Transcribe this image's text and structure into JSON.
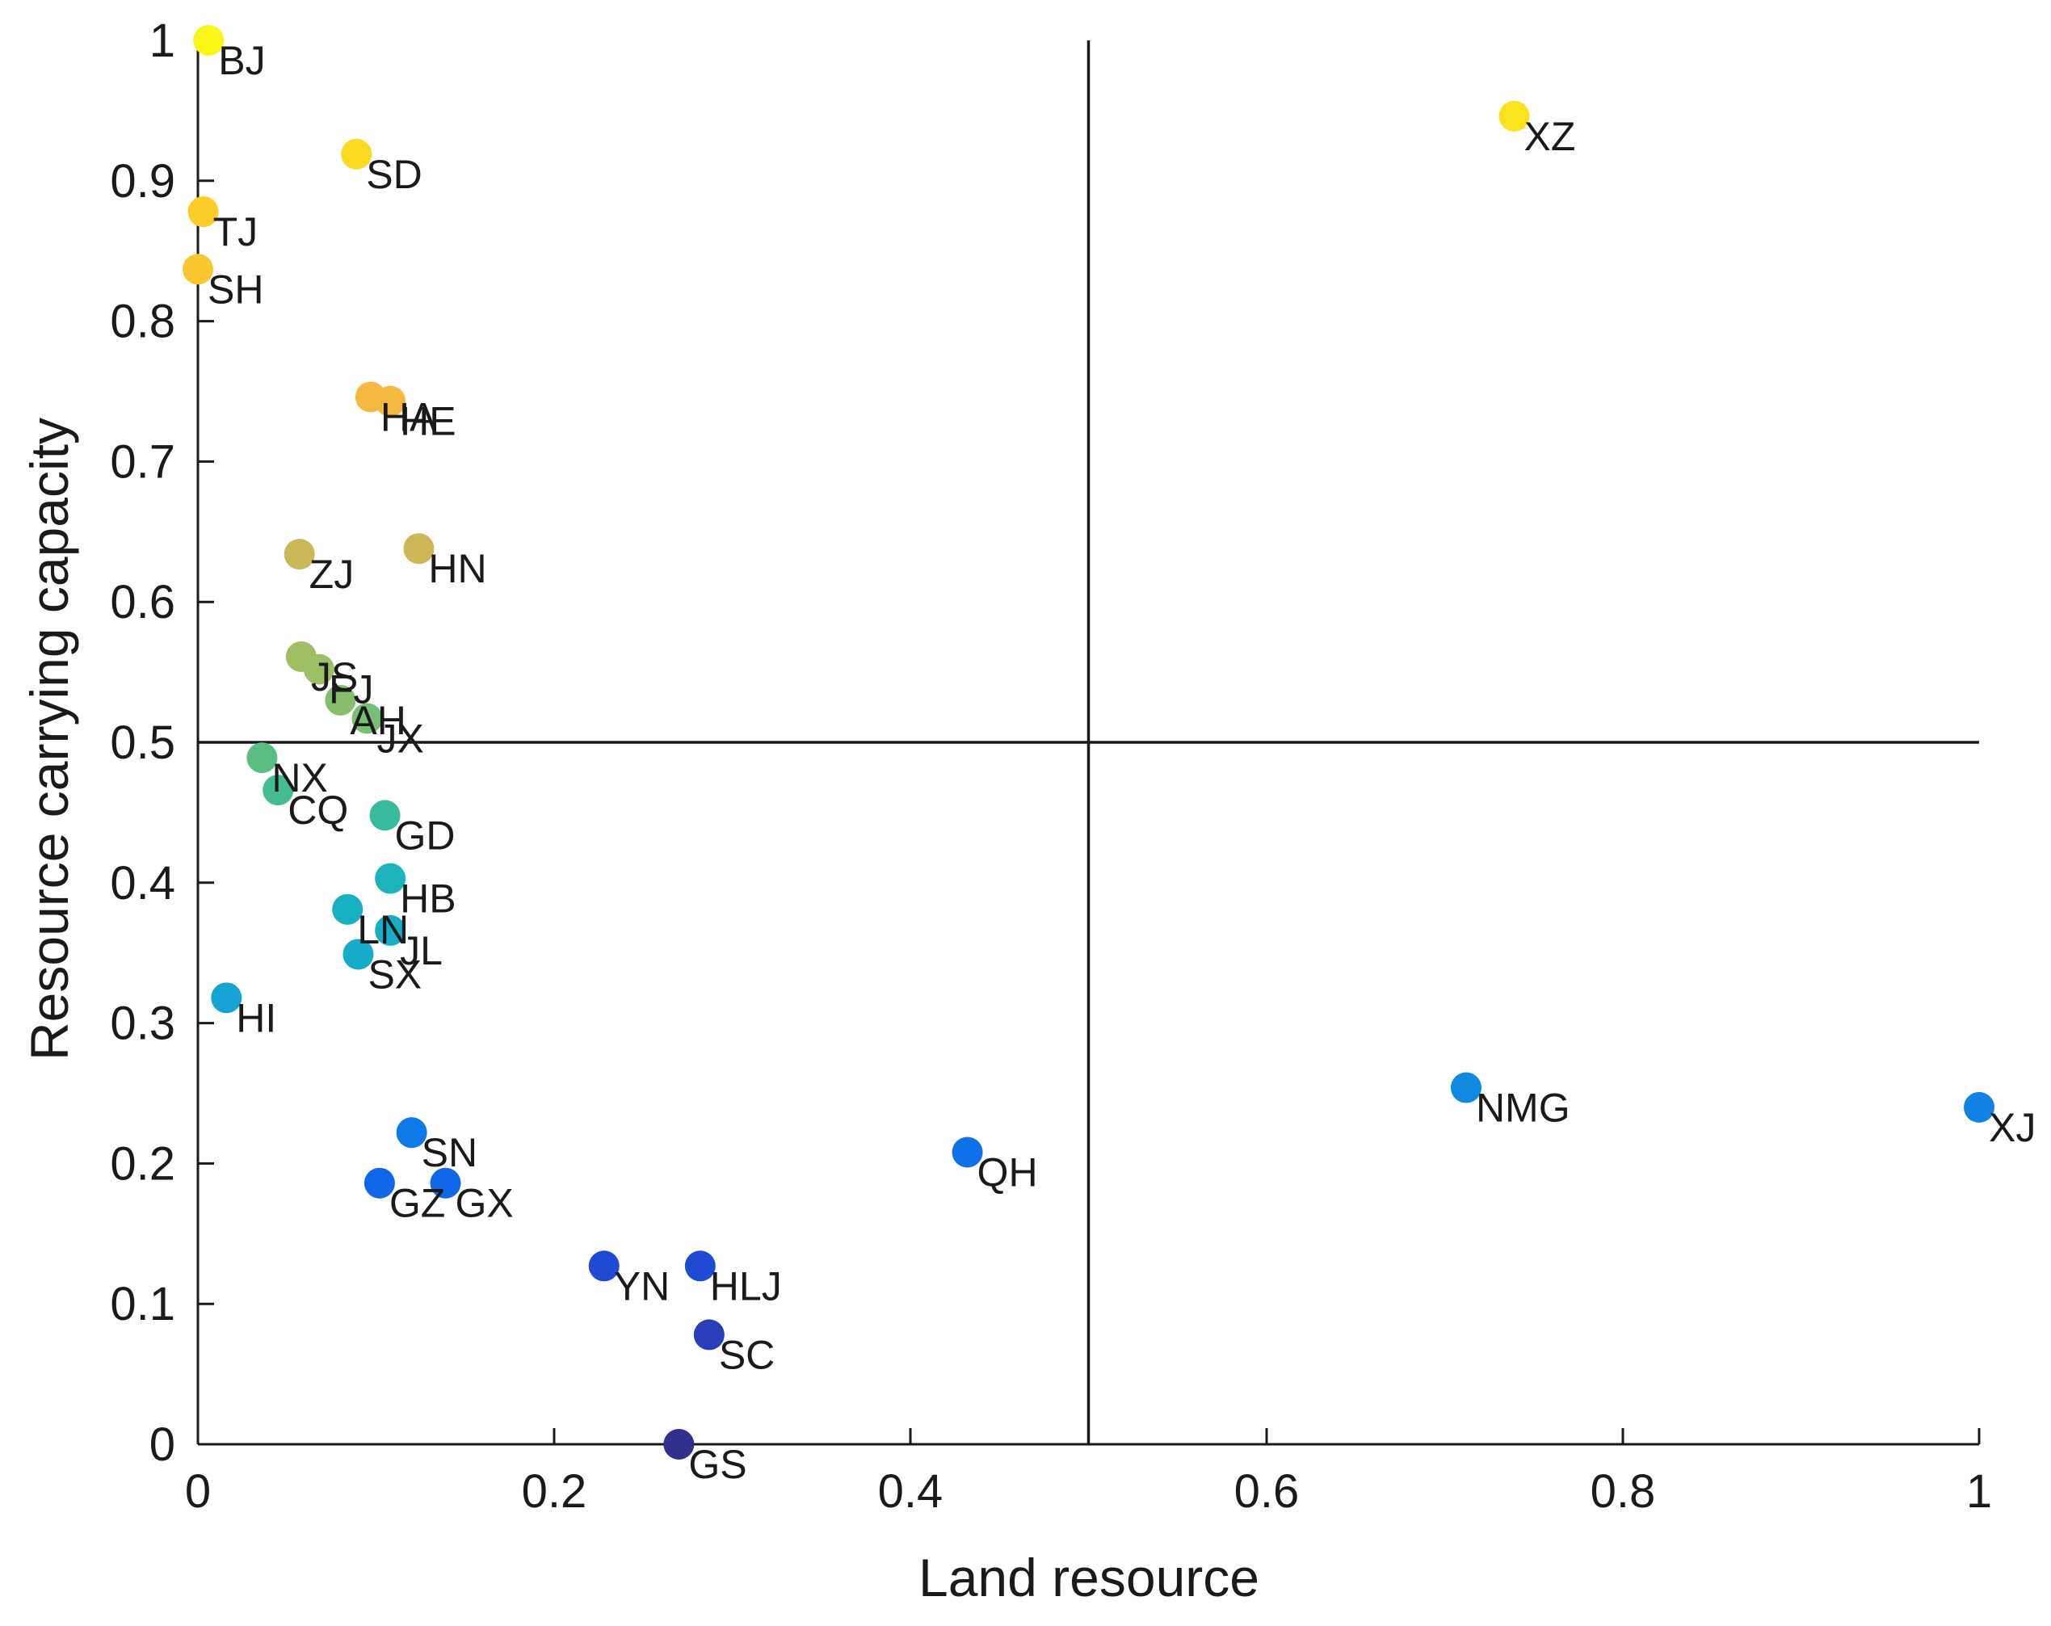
{
  "chart_data": {
    "type": "scatter",
    "title": "",
    "xlabel": "Land resource",
    "ylabel": "Resource carrying capacity",
    "xlim": [
      0,
      1
    ],
    "ylim": [
      0,
      1
    ],
    "xticks": [
      0,
      0.2,
      0.4,
      0.6,
      0.8,
      1
    ],
    "yticks": [
      0,
      0.1,
      0.2,
      0.3,
      0.4,
      0.5,
      0.6,
      0.7,
      0.8,
      0.9,
      1
    ],
    "xtick_labels": [
      "0",
      "0.2",
      "0.4",
      "0.6",
      "0.8",
      "1"
    ],
    "ytick_labels": [
      "0",
      "0.1",
      "0.2",
      "0.3",
      "0.4",
      "0.5",
      "0.6",
      "0.7",
      "0.8",
      "0.9",
      "1"
    ],
    "reference_lines": {
      "x": 0.5,
      "y": 0.5
    },
    "colormap": "parula",
    "color_encoding": "resource carrying capacity",
    "points": [
      {
        "label": "BJ",
        "x": 0.006,
        "y": 1.0
      },
      {
        "label": "XZ",
        "x": 0.739,
        "y": 0.946
      },
      {
        "label": "SD",
        "x": 0.089,
        "y": 0.919
      },
      {
        "label": "TJ",
        "x": 0.003,
        "y": 0.878
      },
      {
        "label": "SH",
        "x": 0.0,
        "y": 0.837
      },
      {
        "label": "HA",
        "x": 0.097,
        "y": 0.746
      },
      {
        "label": "HE",
        "x": 0.108,
        "y": 0.743
      },
      {
        "label": "ZJ",
        "x": 0.057,
        "y": 0.634
      },
      {
        "label": "HN",
        "x": 0.124,
        "y": 0.638
      },
      {
        "label": "JS",
        "x": 0.058,
        "y": 0.561
      },
      {
        "label": "FJ",
        "x": 0.068,
        "y": 0.552
      },
      {
        "label": "AH",
        "x": 0.08,
        "y": 0.53
      },
      {
        "label": "JX",
        "x": 0.095,
        "y": 0.517
      },
      {
        "label": "NX",
        "x": 0.036,
        "y": 0.489
      },
      {
        "label": "CQ",
        "x": 0.045,
        "y": 0.466
      },
      {
        "label": "GD",
        "x": 0.105,
        "y": 0.448
      },
      {
        "label": "HB",
        "x": 0.108,
        "y": 0.403
      },
      {
        "label": "LN",
        "x": 0.084,
        "y": 0.381
      },
      {
        "label": "JL",
        "x": 0.108,
        "y": 0.366
      },
      {
        "label": "SX",
        "x": 0.09,
        "y": 0.349
      },
      {
        "label": "HI",
        "x": 0.016,
        "y": 0.318
      },
      {
        "label": "NMG",
        "x": 0.712,
        "y": 0.254
      },
      {
        "label": "XJ",
        "x": 1.0,
        "y": 0.24
      },
      {
        "label": "SN",
        "x": 0.12,
        "y": 0.222
      },
      {
        "label": "QH",
        "x": 0.432,
        "y": 0.208
      },
      {
        "label": "GZ",
        "x": 0.102,
        "y": 0.186
      },
      {
        "label": "GX",
        "x": 0.139,
        "y": 0.186
      },
      {
        "label": "YN",
        "x": 0.228,
        "y": 0.127
      },
      {
        "label": "HLJ",
        "x": 0.282,
        "y": 0.127
      },
      {
        "label": "SC",
        "x": 0.287,
        "y": 0.078
      },
      {
        "label": "GS",
        "x": 0.27,
        "y": 0.0
      }
    ]
  }
}
